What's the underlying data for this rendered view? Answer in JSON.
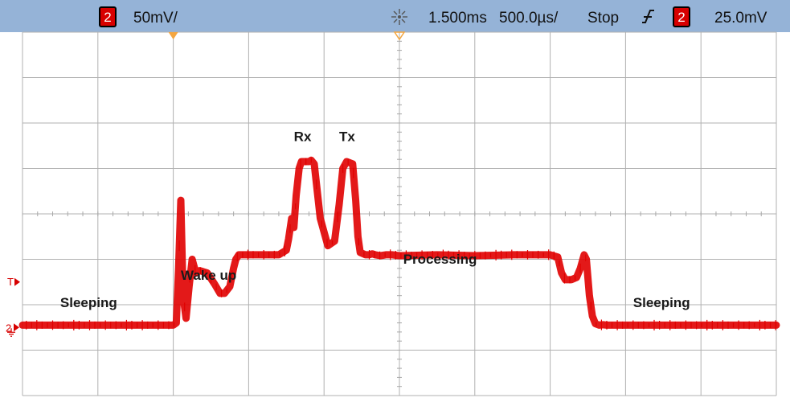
{
  "status_bar": {
    "channel_number": "2",
    "vertical_scale": "50mV/",
    "acquire_icon": "acquire-star-icon",
    "time_offset": "1.500ms",
    "timebase": "500.0µs/",
    "run_state": "Stop",
    "trigger_edge_icon": "rising-edge-icon",
    "trigger_channel": "2",
    "trigger_level": "25.0mV",
    "bar_color": "#95b3d7",
    "badge_color": "#d70000"
  },
  "markers": {
    "trigger_marker_label": "T",
    "channel_ground_label": "2"
  },
  "chart_data": {
    "type": "line",
    "series": [
      {
        "color": "#e00000",
        "x_div": [
          0.0,
          2.0,
          2.04,
          2.07,
          2.1,
          2.13,
          2.17,
          2.21,
          2.25,
          2.3,
          2.35,
          2.45,
          2.55,
          2.62,
          2.68,
          2.75,
          2.8,
          2.83,
          2.87,
          2.95,
          3.1,
          3.25,
          3.4,
          3.5,
          3.53,
          3.57,
          3.6,
          3.63,
          3.67,
          3.7,
          3.73,
          3.77,
          3.8,
          3.83,
          3.87,
          3.95,
          4.05,
          4.14,
          4.2,
          4.25,
          4.3,
          4.38,
          4.42,
          4.45,
          4.48,
          4.55,
          4.6,
          4.64,
          4.68,
          4.75,
          4.82,
          4.9,
          5.0,
          5.5,
          6.0,
          6.5,
          7.0,
          7.1,
          7.15,
          7.2,
          7.28,
          7.35,
          7.4,
          7.45,
          7.48,
          7.52,
          7.56,
          7.6,
          7.65,
          7.7,
          7.75,
          7.8,
          8.0,
          9.0,
          10.0
        ],
        "y_div": [
          -2.45,
          -2.45,
          -2.4,
          -1.2,
          0.3,
          -1.8,
          -2.3,
          -1.6,
          -1.0,
          -1.3,
          -1.25,
          -1.3,
          -1.55,
          -1.75,
          -1.75,
          -1.6,
          -1.2,
          -1.0,
          -0.9,
          -0.9,
          -0.9,
          -0.9,
          -0.9,
          -0.8,
          -0.55,
          -0.1,
          -0.3,
          0.4,
          1.0,
          1.15,
          1.15,
          1.15,
          1.15,
          1.18,
          1.1,
          -0.1,
          -0.7,
          -0.6,
          0.2,
          1.0,
          1.15,
          1.1,
          0.3,
          -0.5,
          -0.85,
          -0.9,
          -0.9,
          -0.88,
          -0.9,
          -0.92,
          -0.9,
          -0.9,
          -0.92,
          -0.9,
          -0.92,
          -0.9,
          -0.9,
          -0.95,
          -1.3,
          -1.45,
          -1.45,
          -1.4,
          -1.2,
          -0.9,
          -1.0,
          -1.8,
          -2.25,
          -2.42,
          -2.45,
          -2.44,
          -2.45,
          -2.45,
          -2.45,
          -2.45,
          -2.45
        ],
        "baseline_noise": true
      }
    ],
    "xlim_div": [
      0,
      10
    ],
    "ylim_div": [
      -4,
      4
    ],
    "x_divisions": 10,
    "y_divisions": 8,
    "grid": true,
    "annotations": [
      {
        "text": "Sleeping",
        "x_div": 0.5,
        "y_div": -2.05
      },
      {
        "text": "Wake up",
        "x_div": 2.1,
        "y_div": -1.45
      },
      {
        "text": "Rx",
        "x_div": 3.6,
        "y_div": 1.6
      },
      {
        "text": "Tx",
        "x_div": 4.2,
        "y_div": 1.6
      },
      {
        "text": "Processing",
        "x_div": 5.05,
        "y_div": -1.1
      },
      {
        "text": "Sleeping",
        "x_div": 8.1,
        "y_div": -2.05
      }
    ],
    "trigger_position_div": 2.0,
    "time_reference_div": 5.0,
    "trigger_level_div": -1.5,
    "ground_level_div": -2.5
  }
}
